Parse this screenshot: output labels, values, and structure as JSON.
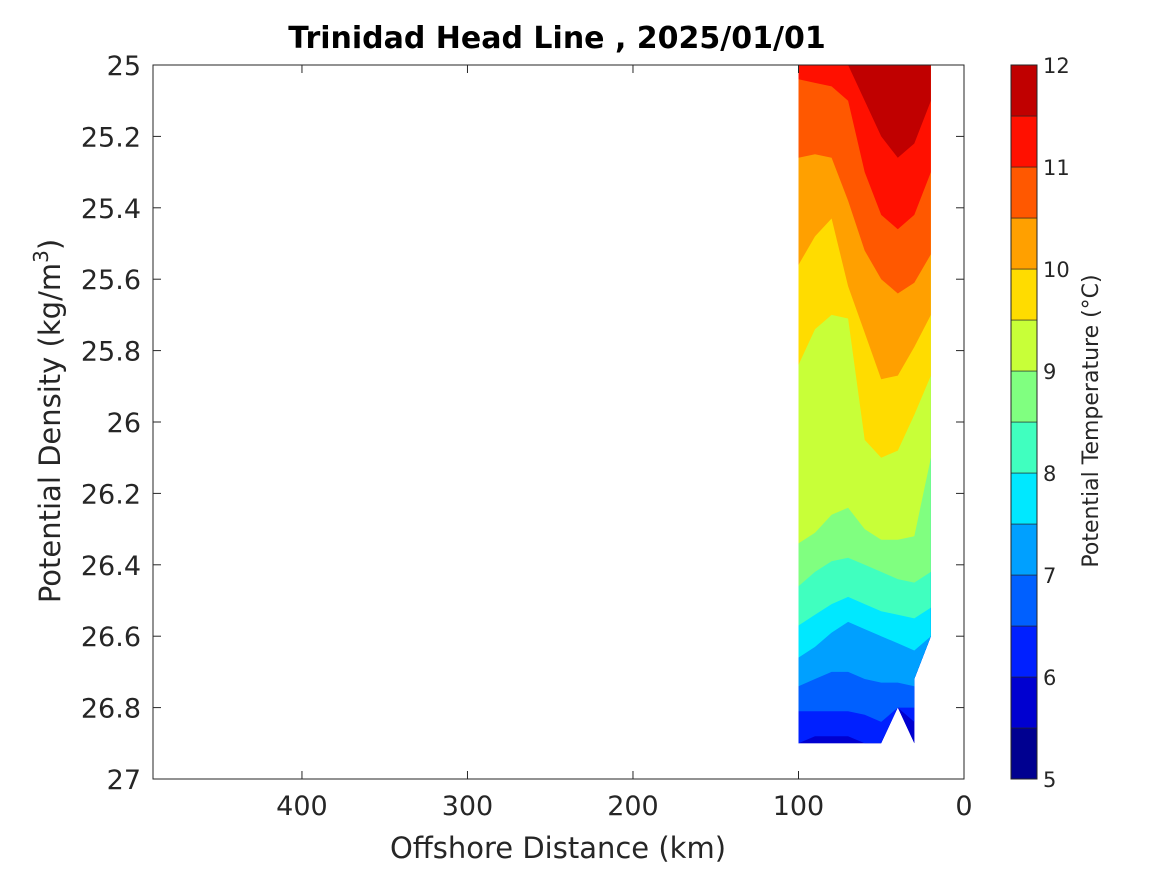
{
  "chart_data": {
    "type": "contour",
    "title": "Trinidad Head Line , 2025/01/01",
    "xlabel": "Offshore Distance (km)",
    "ylabel": "Potential Density (kg/m3)",
    "xlim": [
      490,
      0
    ],
    "ylim": [
      25,
      27
    ],
    "x_reversed": true,
    "y_reversed": true,
    "x_ticks": [
      "400",
      "300",
      "200",
      "100",
      "0"
    ],
    "x_tick_values": [
      400,
      300,
      200,
      100,
      0
    ],
    "y_ticks": [
      "25",
      "25.2",
      "25.4",
      "25.6",
      "25.8",
      "26",
      "26.2",
      "26.4",
      "26.6",
      "26.8",
      "27"
    ],
    "y_tick_values": [
      25,
      25.2,
      25.4,
      25.6,
      25.8,
      26,
      26.2,
      26.4,
      26.6,
      26.8,
      27
    ],
    "colorbar": {
      "label": "Potential Temperature (°C)",
      "range": [
        5,
        12
      ],
      "ticks": [
        "5",
        "6",
        "7",
        "8",
        "9",
        "10",
        "11",
        "12"
      ],
      "tick_values": [
        5,
        6,
        7,
        8,
        9,
        10,
        11,
        12
      ],
      "levels": [
        5,
        5.5,
        6,
        6.5,
        7,
        7.5,
        8,
        8.5,
        9,
        9.5,
        10,
        10.5,
        11,
        11.5,
        12
      ],
      "colors": [
        "#000090",
        "#0000d0",
        "#0020ff",
        "#0060ff",
        "#00a0ff",
        "#00e8ff",
        "#40ffbf",
        "#80ff80",
        "#c8ff38",
        "#ffdc00",
        "#ffa000",
        "#ff5800",
        "#ff1000",
        "#c00000"
      ]
    },
    "section": {
      "x_km": [
        100,
        90,
        80,
        70,
        60,
        50,
        40,
        30,
        20
      ],
      "band_values": [
        5.75,
        6.25,
        6.75,
        7.25,
        7.75,
        8.25,
        8.75,
        9.25,
        9.75,
        10.25,
        10.75,
        11.25
      ],
      "contours": [
        {
          "level": 5.5,
          "y": [
            26.9,
            26.9,
            26.9,
            26.9,
            26.9,
            26.9,
            26.8,
            26.9,
            null
          ]
        },
        {
          "level": 6.0,
          "y": [
            26.9,
            26.88,
            26.88,
            26.88,
            26.9,
            26.9,
            26.8,
            26.84,
            null
          ]
        },
        {
          "level": 6.5,
          "y": [
            26.81,
            26.81,
            26.81,
            26.81,
            26.82,
            26.84,
            26.8,
            26.8,
            null
          ]
        },
        {
          "level": 7.0,
          "y": [
            26.74,
            26.72,
            26.7,
            26.7,
            26.72,
            26.73,
            26.73,
            26.74,
            null
          ]
        },
        {
          "level": 7.5,
          "y": [
            26.66,
            26.63,
            26.59,
            26.56,
            26.58,
            26.6,
            26.62,
            26.64,
            26.6
          ]
        },
        {
          "level": 8.0,
          "y": [
            26.57,
            26.54,
            26.51,
            26.49,
            26.51,
            26.53,
            26.54,
            26.55,
            26.52
          ]
        },
        {
          "level": 8.5,
          "y": [
            26.46,
            26.42,
            26.39,
            26.38,
            26.4,
            26.42,
            26.44,
            26.45,
            26.42
          ]
        },
        {
          "level": 9.0,
          "y": [
            26.34,
            26.31,
            26.26,
            26.24,
            26.3,
            26.33,
            26.33,
            26.32,
            26.1
          ]
        },
        {
          "level": 9.5,
          "y": [
            25.84,
            25.74,
            25.7,
            25.71,
            26.05,
            26.1,
            26.08,
            25.98,
            25.87
          ]
        },
        {
          "level": 10.0,
          "y": [
            25.56,
            25.48,
            25.43,
            25.62,
            25.75,
            25.88,
            25.87,
            25.79,
            25.7
          ]
        },
        {
          "level": 10.5,
          "y": [
            25.26,
            25.25,
            25.26,
            25.38,
            25.52,
            25.6,
            25.64,
            25.61,
            25.53
          ]
        },
        {
          "level": 11.0,
          "y": [
            25.04,
            25.05,
            25.06,
            25.1,
            25.3,
            25.42,
            25.46,
            25.42,
            25.3
          ]
        },
        {
          "level": 11.5,
          "y": [
            null,
            null,
            25.0,
            25.0,
            25.1,
            25.2,
            25.26,
            25.22,
            25.1
          ]
        }
      ]
    }
  }
}
